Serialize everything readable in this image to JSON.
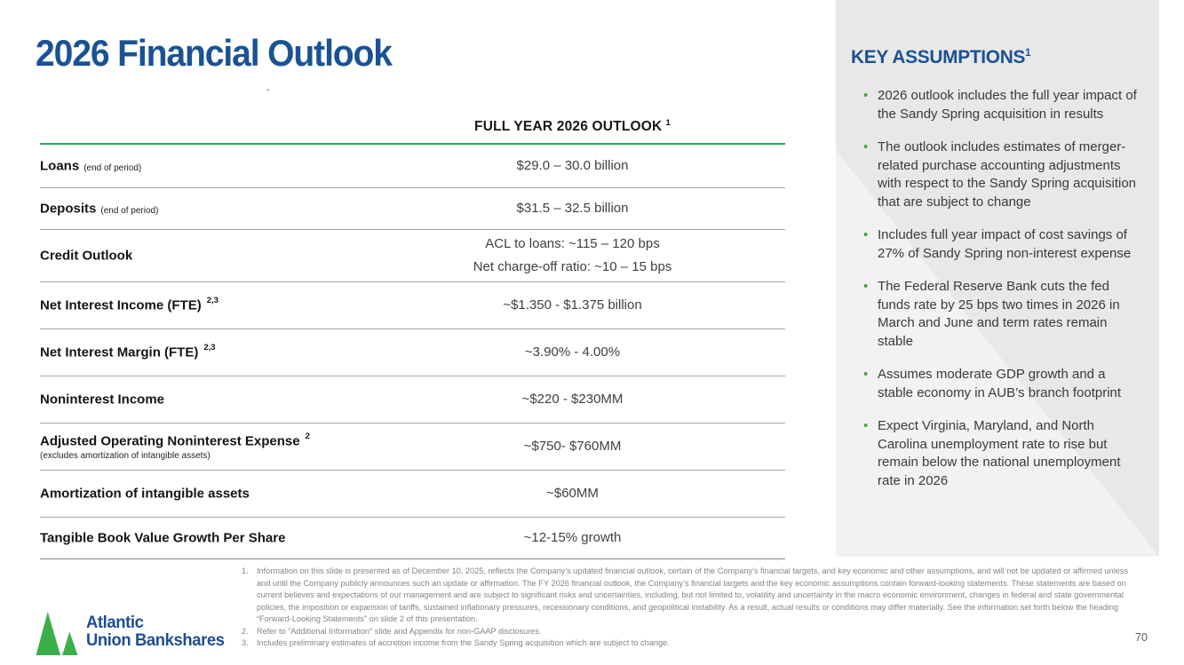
{
  "title": "2026 Financial Outlook",
  "stray_mark": ".",
  "page": {
    "number": "70"
  },
  "colors": {
    "brand_blue": "#1a5294",
    "accent_green": "#2aa85c",
    "bullet_green": "#4aa147",
    "logo_green": "#3cae4a",
    "panel_gray": "#e8e8e8",
    "divider_gray": "#a6a6a6",
    "footnote_gray": "#848484"
  },
  "table": {
    "header": {
      "text": "FULL YEAR 2026 OUTLOOK",
      "sup": "1"
    },
    "rows": [
      {
        "label": "Loans",
        "note": "(end of period)",
        "sup": "",
        "sublabel": "",
        "values": [
          "$29.0 – 30.0 billion"
        ]
      },
      {
        "label": "Deposits",
        "note": "(end of period)",
        "sup": "",
        "sublabel": "",
        "values": [
          "$31.5 – 32.5 billion"
        ]
      },
      {
        "label": "Credit Outlook",
        "note": "",
        "sup": "",
        "sublabel": "",
        "values": [
          "ACL to loans: ~115 – 120 bps",
          "Net charge-off ratio: ~10 – 15 bps"
        ]
      },
      {
        "label": "Net Interest Income (FTE)",
        "note": "",
        "sup": "2,3",
        "sublabel": "",
        "values": [
          "~$1.350 - $1.375 billion"
        ]
      },
      {
        "label": "Net Interest Margin (FTE)",
        "note": "",
        "sup": "2,3",
        "sublabel": "",
        "values": [
          "~3.90% - 4.00%"
        ]
      },
      {
        "label": "Noninterest Income",
        "note": "",
        "sup": "",
        "sublabel": "",
        "values": [
          "~$220 - $230MM"
        ]
      },
      {
        "label": "Adjusted Operating Noninterest Expense",
        "note": "",
        "sup": "2",
        "sublabel": "(excludes amortization of intangible assets)",
        "values": [
          "~$750- $760MM"
        ]
      },
      {
        "label": "Amortization of intangible assets",
        "note": "",
        "sup": "",
        "sublabel": "",
        "values": [
          "~$60MM"
        ]
      },
      {
        "label": "Tangible Book Value Growth Per Share",
        "note": "",
        "sup": "",
        "sublabel": "",
        "values": [
          "~12-15% growth"
        ]
      }
    ]
  },
  "sidebar": {
    "header": {
      "text": "KEY ASSUMPTIONS",
      "sup": "1"
    },
    "bullets": [
      {
        "text": "2026 outlook includes the full year impact of the Sandy Spring acquisition in results"
      },
      {
        "text": "The outlook includes estimates of merger-related purchase accounting adjustments with respect to the Sandy Spring acquisition that are subject to change"
      },
      {
        "text": "Includes full year impact of cost savings of 27% of Sandy Spring non-interest expense"
      },
      {
        "text": "The Federal Reserve Bank cuts the fed funds rate by 25 bps two times in 2026 in March and June and term rates remain stable"
      },
      {
        "text": "Assumes moderate GDP growth and a stable economy in AUB’s branch footprint"
      },
      {
        "text": "Expect Virginia, Maryland, and North Carolina unemployment rate to rise but remain below the national unemployment rate in 2026"
      }
    ]
  },
  "footnotes": [
    {
      "num": "1.",
      "text": "Information on this slide is presented as of December 10, 2025, reflects the Company’s updated financial outlook, certain of the Company’s financial targets, and key economic and other assumptions, and will not be updated or affirmed unless and until the Company publicly announces such an update or affirmation.  The FY 2026 financial outlook, the Company’s financial targets and the key economic assumptions contain forward-looking statements. These statements are based on current believes and expectations of our management and are subject to significant risks and uncertainties, including, but not limited to, volatility and uncertainty in the macro economic environment, changes in federal and state governmental policies, the imposition or expansion of tariffs, sustained inflationary pressures, recessionary conditions, and geopolitical instability.  As a result, actual results or conditions may differ materially.  See the information set forth below the heading “Forward-Looking Statements” on slide 2 of this presentation."
    },
    {
      "num": "2.",
      "text": "Refer to “Additional Information” slide and Appendix for non-GAAP disclosures."
    },
    {
      "num": "3.",
      "text": "Includes preliminary estimates of accretion income from the Sandy Spring acquisition which are subject to change."
    }
  ],
  "logo": {
    "line1": "Atlantic",
    "line2": "Union Bankshares"
  }
}
